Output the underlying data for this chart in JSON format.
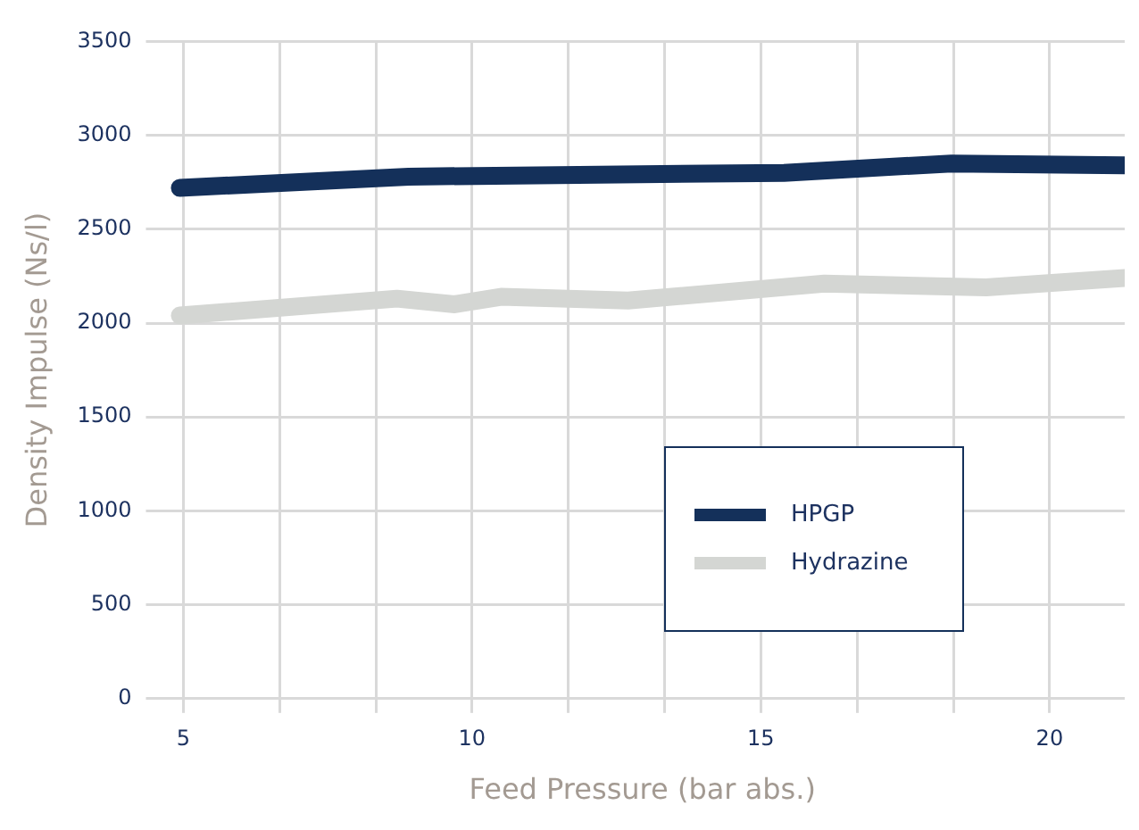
{
  "chart_data": {
    "type": "line",
    "xlabel": "Feed Pressure (bar abs.)",
    "ylabel": "Density Impulse (Ns/l)",
    "xlim": [
      4.6,
      21.3
    ],
    "xticks": [
      5,
      {
        "value": 6.667,
        "label": null
      },
      {
        "value": 8.333,
        "label": null
      },
      10,
      {
        "value": 11.667,
        "label": null
      },
      {
        "value": 13.333,
        "label": null
      },
      15,
      {
        "value": 16.667,
        "label": null
      },
      {
        "value": 18.333,
        "label": null
      },
      20
    ],
    "ylim": [
      0,
      3500
    ],
    "yticks": [
      0,
      500,
      1000,
      1500,
      2000,
      2500,
      3000,
      3500
    ],
    "grid": true,
    "legend": "center right",
    "marker": "none",
    "line_style": "solid",
    "series": [
      {
        "name": "HPGP",
        "color": "#14305a",
        "x": [
          4.94,
          8.9,
          15.4,
          18.3,
          21.3
        ],
        "values": [
          2720,
          2780,
          2800,
          2850,
          2840
        ]
      },
      {
        "name": "Hydrazine",
        "color": "#d4d6d3",
        "x": [
          4.94,
          8.7,
          9.7,
          10.5,
          12.7,
          16.1,
          18.9,
          21.3
        ],
        "values": [
          2040,
          2130,
          2100,
          2140,
          2120,
          2210,
          2190,
          2240
        ]
      }
    ]
  }
}
